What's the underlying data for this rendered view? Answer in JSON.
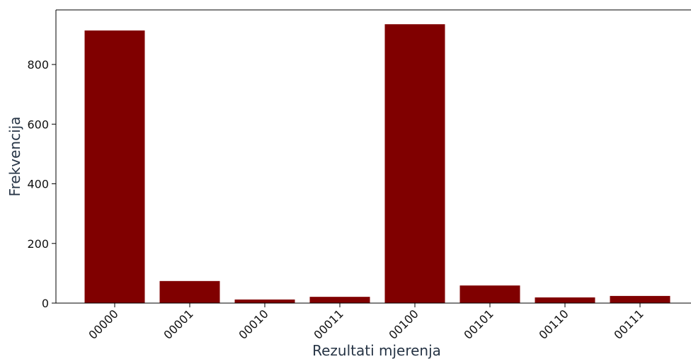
{
  "chart_data": {
    "type": "bar",
    "x_label": "Rezultati mjerenja",
    "y_label": "Frekvencija",
    "categories": [
      "00000",
      "00001",
      "00010",
      "00011",
      "00100",
      "00101",
      "00110",
      "00111"
    ],
    "values": [
      914,
      74,
      12,
      21,
      935,
      59,
      19,
      24
    ],
    "color": "#800000",
    "ylim": [
      0,
      983
    ],
    "yticks": [
      0,
      200,
      400,
      600,
      800
    ],
    "grid": false
  }
}
